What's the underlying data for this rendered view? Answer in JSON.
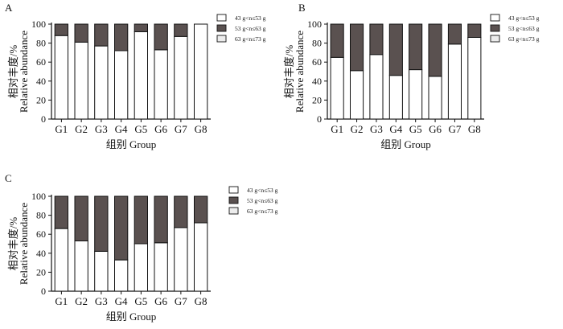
{
  "chart_data": [
    {
      "panel": "A",
      "type": "bar",
      "stacked": true,
      "normalized": true,
      "categories": [
        "G1",
        "G2",
        "G3",
        "G4",
        "G5",
        "G6",
        "G7",
        "G8"
      ],
      "series": [
        {
          "name": "43 g<n≤53 g",
          "color": "#ffffff",
          "values": [
            88,
            81,
            77,
            72,
            92,
            73,
            87,
            100
          ]
        },
        {
          "name": "53 g<n≤63 g",
          "color": "#5a5150",
          "values": [
            12,
            19,
            23,
            28,
            8,
            27,
            13,
            0
          ]
        },
        {
          "name": "63 g<n≤73 g",
          "color": "#ececec",
          "values": [
            0,
            0,
            0,
            0,
            0,
            0,
            0,
            0
          ]
        }
      ],
      "xlabel": "组别  Group",
      "ylabel_cn": "相对丰度/%",
      "ylabel_en": "Relative abundance",
      "ylim": [
        0,
        100
      ],
      "yticks": [
        "0",
        "20",
        "40",
        "60",
        "80",
        "100"
      ]
    },
    {
      "panel": "B",
      "type": "bar",
      "stacked": true,
      "normalized": true,
      "categories": [
        "G1",
        "G2",
        "G3",
        "G4",
        "G5",
        "G6",
        "G7",
        "G8"
      ],
      "series": [
        {
          "name": "43 g<n≤53 g",
          "color": "#ffffff",
          "values": [
            65,
            51,
            68,
            46,
            52,
            45,
            79,
            86
          ]
        },
        {
          "name": "53 g<n≤63 g",
          "color": "#5a5150",
          "values": [
            35,
            49,
            32,
            54,
            48,
            55,
            21,
            14
          ]
        },
        {
          "name": "63 g<n≤73 g",
          "color": "#ececec",
          "values": [
            0,
            0,
            0,
            0,
            0,
            0,
            0,
            0
          ]
        }
      ],
      "xlabel": "组别  Group",
      "ylabel_cn": "相对丰度/%",
      "ylabel_en": "Relative abundance",
      "ylim": [
        0,
        100
      ],
      "yticks": [
        "0",
        "20",
        "40",
        "60",
        "80",
        "100"
      ]
    },
    {
      "panel": "C",
      "type": "bar",
      "stacked": true,
      "normalized": true,
      "categories": [
        "G1",
        "G2",
        "G3",
        "G4",
        "G5",
        "G6",
        "G7",
        "G8"
      ],
      "series": [
        {
          "name": "43 g<n≤53 g",
          "color": "#ffffff",
          "values": [
            66,
            53,
            42,
            33,
            50,
            51,
            67,
            72
          ]
        },
        {
          "name": "53 g<n≤63 g",
          "color": "#5a5150",
          "values": [
            34,
            47,
            58,
            67,
            50,
            49,
            33,
            28
          ]
        },
        {
          "name": "63 g<n≤73 g",
          "color": "#ececec",
          "values": [
            0,
            0,
            0,
            0,
            0,
            0,
            0,
            0
          ]
        }
      ],
      "xlabel": "组别  Group",
      "ylabel_cn": "相对丰度/%",
      "ylabel_en": "Relative abundance",
      "ylim": [
        0,
        100
      ],
      "yticks": [
        "0",
        "20",
        "40",
        "60",
        "80",
        "100"
      ]
    }
  ]
}
